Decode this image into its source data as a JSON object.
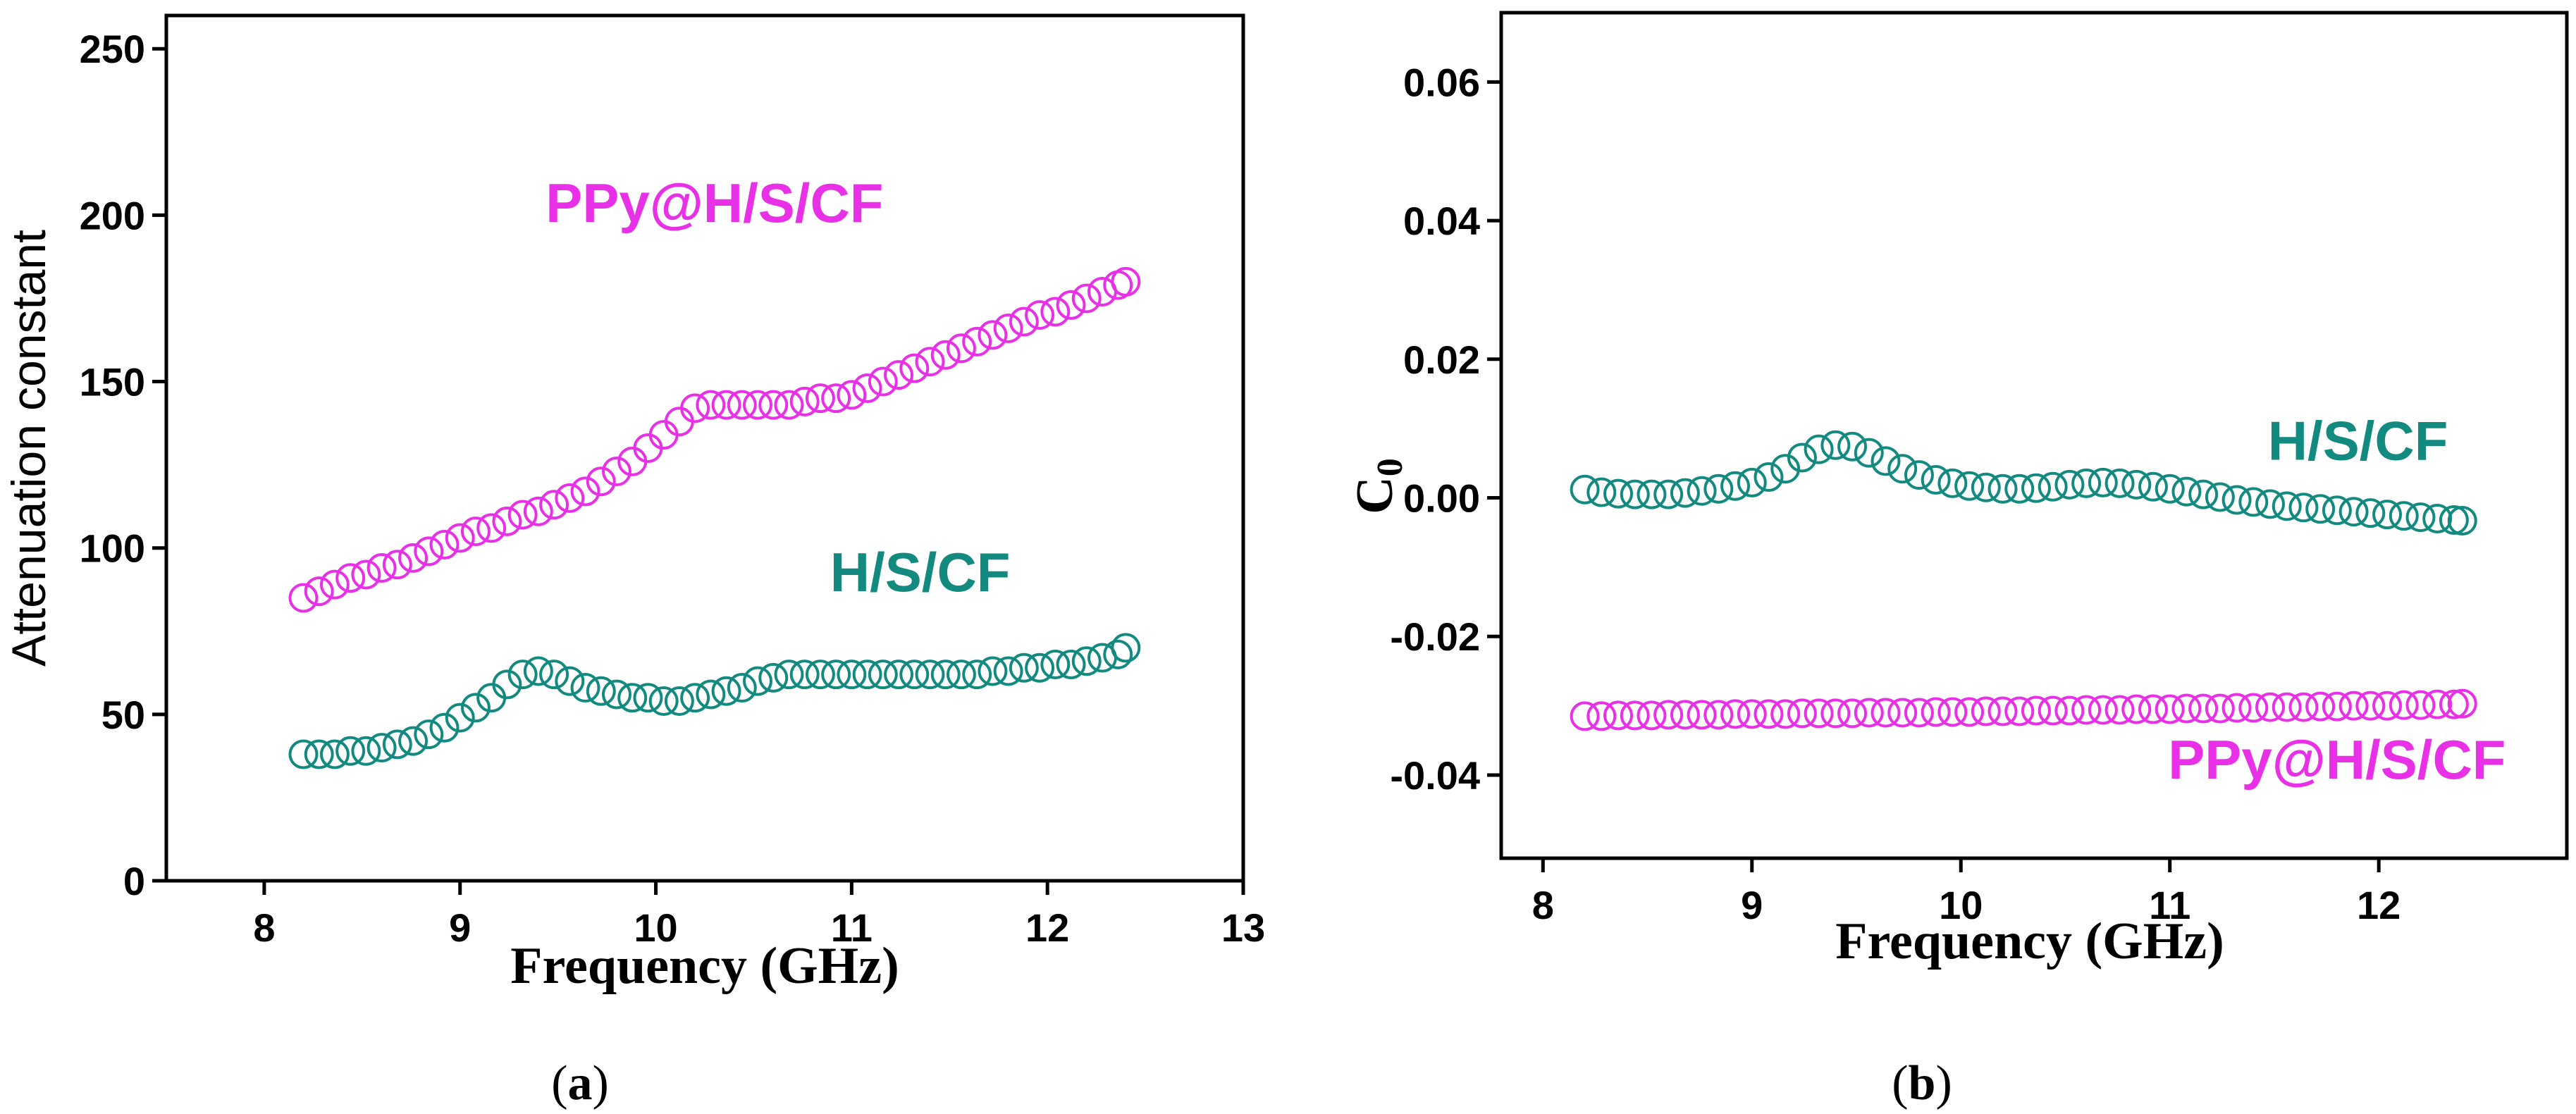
{
  "colors": {
    "ppy": "#e830e6",
    "hscf": "#138a80",
    "axis": "#000000"
  },
  "chart_data": [
    {
      "id": "a",
      "type": "scatter",
      "panel_label": "a",
      "xlabel": "Frequency (GHz)",
      "ylabel": "Attenuation constant",
      "xlim": [
        7.5,
        13
      ],
      "ylim": [
        0,
        260
      ],
      "x_ticks": [
        "8",
        "9",
        "10",
        "11",
        "12",
        "13"
      ],
      "y_ticks": [
        "0",
        "50",
        "100",
        "150",
        "200",
        "250"
      ],
      "grid": false,
      "series": [
        {
          "name": "PPy@H/S/CF",
          "color_key": "ppy",
          "x": [
            8.2,
            8.28,
            8.36,
            8.44,
            8.52,
            8.6,
            8.68,
            8.76,
            8.84,
            8.92,
            9.0,
            9.08,
            9.16,
            9.24,
            9.32,
            9.4,
            9.48,
            9.56,
            9.64,
            9.72,
            9.8,
            9.88,
            9.96,
            10.04,
            10.12,
            10.2,
            10.28,
            10.36,
            10.44,
            10.52,
            10.6,
            10.68,
            10.76,
            10.84,
            10.92,
            11.0,
            11.08,
            11.16,
            11.24,
            11.32,
            11.4,
            11.48,
            11.56,
            11.64,
            11.72,
            11.8,
            11.88,
            11.96,
            12.04,
            12.12,
            12.2,
            12.28,
            12.36,
            12.4
          ],
          "y": [
            85,
            87,
            89,
            91,
            92,
            94,
            95,
            97,
            99,
            101,
            103,
            105,
            106,
            108,
            110,
            111,
            113,
            115,
            117,
            120,
            123,
            126,
            130,
            134,
            138,
            142,
            143,
            143,
            143,
            143,
            143,
            143,
            144,
            145,
            145,
            146,
            148,
            150,
            152,
            154,
            156,
            158,
            160,
            162,
            164,
            166,
            168,
            170,
            171,
            173,
            175,
            177,
            179,
            180
          ]
        },
        {
          "name": "H/S/CF",
          "color_key": "hscf",
          "x": [
            8.2,
            8.28,
            8.36,
            8.44,
            8.52,
            8.6,
            8.68,
            8.76,
            8.84,
            8.92,
            9.0,
            9.08,
            9.16,
            9.24,
            9.32,
            9.4,
            9.48,
            9.56,
            9.64,
            9.72,
            9.8,
            9.88,
            9.96,
            10.04,
            10.12,
            10.2,
            10.28,
            10.36,
            10.44,
            10.52,
            10.6,
            10.68,
            10.76,
            10.84,
            10.92,
            11.0,
            11.08,
            11.16,
            11.24,
            11.32,
            11.4,
            11.48,
            11.56,
            11.64,
            11.72,
            11.8,
            11.88,
            11.96,
            12.04,
            12.12,
            12.2,
            12.28,
            12.36,
            12.4
          ],
          "y": [
            38,
            38,
            38,
            39,
            39,
            40,
            41,
            42,
            44,
            46,
            49,
            52,
            55,
            59,
            62,
            63,
            62,
            60,
            58,
            57,
            56,
            55,
            55,
            54,
            54,
            55,
            56,
            57,
            58,
            60,
            61,
            62,
            62,
            62,
            62,
            62,
            62,
            62,
            62,
            62,
            62,
            62,
            62,
            62,
            63,
            63,
            64,
            64,
            65,
            65,
            66,
            67,
            68,
            70
          ]
        }
      ],
      "annotations": [
        {
          "text": "PPy@H/S/CF",
          "color_key": "ppy",
          "x": 10.3,
          "y": 198
        },
        {
          "text": "H/S/CF",
          "color_key": "hscf",
          "x": 11.35,
          "y": 87
        }
      ]
    },
    {
      "id": "b",
      "type": "scatter",
      "panel_label": "b",
      "xlabel": "Frequency (GHz)",
      "ylabel": "C",
      "ylabel_sub": "0",
      "xlim": [
        7.8,
        12.9
      ],
      "ylim": [
        -0.052,
        0.07
      ],
      "x_ticks": [
        "8",
        "9",
        "10",
        "11",
        "12"
      ],
      "y_ticks": [
        "-0.04",
        "-0.02",
        "0.00",
        "0.02",
        "0.04",
        "0.06"
      ],
      "grid": false,
      "series": [
        {
          "name": "H/S/CF",
          "color_key": "hscf",
          "x": [
            8.2,
            8.28,
            8.36,
            8.44,
            8.52,
            8.6,
            8.68,
            8.76,
            8.84,
            8.92,
            9.0,
            9.08,
            9.16,
            9.24,
            9.32,
            9.4,
            9.48,
            9.56,
            9.64,
            9.72,
            9.8,
            9.88,
            9.96,
            10.04,
            10.12,
            10.2,
            10.28,
            10.36,
            10.44,
            10.52,
            10.6,
            10.68,
            10.76,
            10.84,
            10.92,
            11.0,
            11.08,
            11.16,
            11.24,
            11.32,
            11.4,
            11.48,
            11.56,
            11.64,
            11.72,
            11.8,
            11.88,
            11.96,
            12.04,
            12.12,
            12.2,
            12.28,
            12.36,
            12.4
          ],
          "y": [
            0.0012,
            0.0008,
            0.0006,
            0.0005,
            0.0005,
            0.0005,
            0.0007,
            0.001,
            0.0013,
            0.0017,
            0.0022,
            0.003,
            0.0042,
            0.0058,
            0.007,
            0.0076,
            0.0074,
            0.0065,
            0.0053,
            0.0042,
            0.0033,
            0.0026,
            0.0021,
            0.0017,
            0.0015,
            0.0013,
            0.0013,
            0.0014,
            0.0016,
            0.0019,
            0.0021,
            0.0022,
            0.0021,
            0.0019,
            0.0016,
            0.0013,
            0.0009,
            0.0005,
            0.0001,
            -0.0003,
            -0.0006,
            -0.0009,
            -0.0012,
            -0.0014,
            -0.0016,
            -0.0018,
            -0.002,
            -0.0022,
            -0.0024,
            -0.0026,
            -0.0028,
            -0.003,
            -0.0032,
            -0.0033
          ]
        },
        {
          "name": "PPy@H/S/CF",
          "color_key": "ppy",
          "x": [
            8.2,
            8.28,
            8.36,
            8.44,
            8.52,
            8.6,
            8.68,
            8.76,
            8.84,
            8.92,
            9.0,
            9.08,
            9.16,
            9.24,
            9.32,
            9.4,
            9.48,
            9.56,
            9.64,
            9.72,
            9.8,
            9.88,
            9.96,
            10.04,
            10.12,
            10.2,
            10.28,
            10.36,
            10.44,
            10.52,
            10.6,
            10.68,
            10.76,
            10.84,
            10.92,
            11.0,
            11.08,
            11.16,
            11.24,
            11.32,
            11.4,
            11.48,
            11.56,
            11.64,
            11.72,
            11.8,
            11.88,
            11.96,
            12.04,
            12.12,
            12.2,
            12.28,
            12.36,
            12.4
          ],
          "y": [
            -0.0315,
            -0.0315,
            -0.0314,
            -0.0314,
            -0.0314,
            -0.0313,
            -0.0313,
            -0.0313,
            -0.0313,
            -0.0312,
            -0.0312,
            -0.0312,
            -0.0312,
            -0.0311,
            -0.0311,
            -0.0311,
            -0.0311,
            -0.031,
            -0.031,
            -0.031,
            -0.031,
            -0.0309,
            -0.0309,
            -0.0309,
            -0.0308,
            -0.0308,
            -0.0308,
            -0.0307,
            -0.0307,
            -0.0307,
            -0.0306,
            -0.0306,
            -0.0306,
            -0.0305,
            -0.0305,
            -0.0305,
            -0.0304,
            -0.0304,
            -0.0304,
            -0.0303,
            -0.0303,
            -0.0302,
            -0.0302,
            -0.0302,
            -0.0301,
            -0.0301,
            -0.03,
            -0.03,
            -0.03,
            -0.0299,
            -0.0299,
            -0.0298,
            -0.0298,
            -0.0297
          ]
        }
      ],
      "annotations": [
        {
          "text": "H/S/CF",
          "color_key": "hscf",
          "x": 11.9,
          "y": 0.0055
        },
        {
          "text": "PPy@H/S/CF",
          "color_key": "ppy",
          "x": 11.8,
          "y": -0.0405
        }
      ]
    }
  ]
}
